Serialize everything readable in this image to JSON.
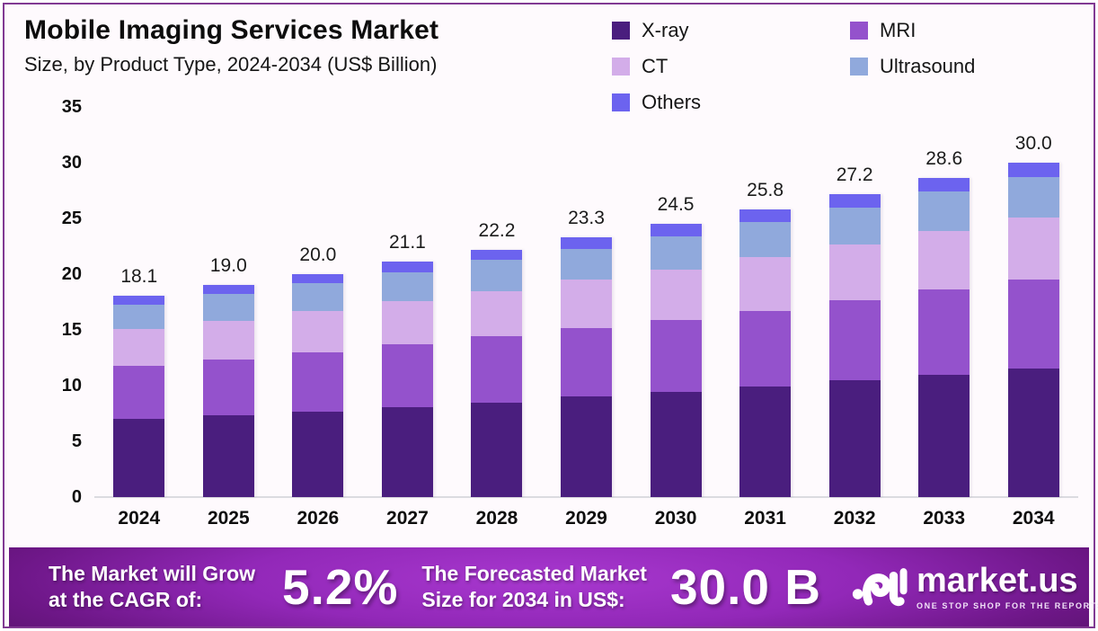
{
  "frame": {
    "border_color": "#813A93",
    "background": "#FEFAFD"
  },
  "header": {
    "title": "Mobile Imaging Services Market",
    "subtitle": "Size, by Product Type, 2024-2034 (US$ Billion)"
  },
  "chart_data": {
    "type": "bar",
    "stacked": true,
    "title": "Mobile Imaging Services Market Size, by Product Type, 2024-2034 (US$ Billion)",
    "categories": [
      "2024",
      "2025",
      "2026",
      "2027",
      "2028",
      "2029",
      "2030",
      "2031",
      "2032",
      "2033",
      "2034"
    ],
    "totals": [
      "18.1",
      "19.0",
      "20.0",
      "21.1",
      "22.2",
      "23.3",
      "24.5",
      "25.8",
      "27.2",
      "28.6",
      "30.0"
    ],
    "series": [
      {
        "name": "X-ray",
        "color": "#4A1E7E",
        "values": [
          7.0,
          7.3,
          7.7,
          8.1,
          8.5,
          9.0,
          9.4,
          9.9,
          10.5,
          11.0,
          11.5
        ]
      },
      {
        "name": "MRI",
        "color": "#9452CC",
        "values": [
          4.8,
          5.0,
          5.3,
          5.6,
          5.9,
          6.2,
          6.5,
          6.8,
          7.2,
          7.6,
          8.0
        ]
      },
      {
        "name": "CT",
        "color": "#D3ADE9",
        "values": [
          3.3,
          3.5,
          3.7,
          3.9,
          4.1,
          4.3,
          4.5,
          4.8,
          5.0,
          5.3,
          5.6
        ]
      },
      {
        "name": "Ultrasound",
        "color": "#90A9DC",
        "values": [
          2.2,
          2.4,
          2.5,
          2.6,
          2.8,
          2.8,
          3.0,
          3.2,
          3.3,
          3.5,
          3.6
        ]
      },
      {
        "name": "Others",
        "color": "#6C63EF",
        "values": [
          0.8,
          0.8,
          0.8,
          0.9,
          0.9,
          1.0,
          1.1,
          1.1,
          1.2,
          1.2,
          1.3
        ]
      }
    ],
    "legend_order": [
      "X-ray",
      "MRI",
      "CT",
      "Ultrasound",
      "Others"
    ],
    "legend_position": "top-right",
    "yticks": [
      0,
      5,
      10,
      15,
      20,
      25,
      30,
      35
    ],
    "ylim": [
      0,
      35
    ],
    "xlabel": "",
    "ylabel": "",
    "grid": false
  },
  "banner": {
    "cagr_label_line1": "The Market will Grow",
    "cagr_label_line2": "at the CAGR of:",
    "cagr_value": "5.2%",
    "forecast_label_line1": "The Forecasted Market",
    "forecast_label_line2": "Size for 2034 in US$:",
    "forecast_value": "30.0 B",
    "brand": {
      "name": "market.us",
      "tagline": "ONE STOP SHOP FOR THE REPORTS"
    }
  }
}
